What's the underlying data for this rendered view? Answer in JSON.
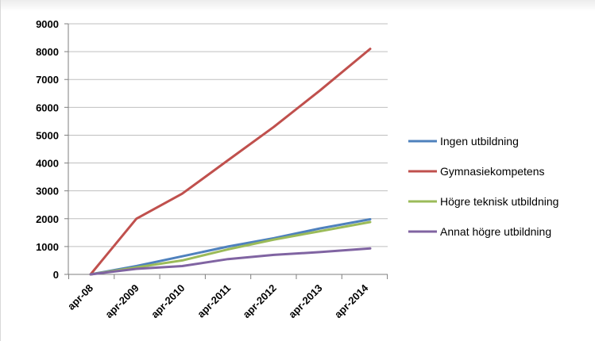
{
  "chart_data": {
    "type": "line",
    "title": "",
    "xlabel": "",
    "ylabel": "",
    "categories": [
      "apr-08",
      "apr-2009",
      "apr-2010",
      "apr-2011",
      "apr-2012",
      "apr-2013",
      "apr-2014"
    ],
    "ylim": [
      0,
      9000
    ],
    "yticks": [
      0,
      1000,
      2000,
      3000,
      4000,
      5000,
      6000,
      7000,
      8000,
      9000
    ],
    "grid": true,
    "legend_position": "right",
    "series": [
      {
        "name": "Ingen utbildning",
        "color": "#4f81bd",
        "points": [
          [
            0,
            0
          ],
          [
            1,
            300
          ],
          [
            2,
            650
          ],
          [
            3,
            1000
          ],
          [
            4,
            1300
          ],
          [
            5,
            1650
          ],
          [
            6.1,
            1980
          ]
        ]
      },
      {
        "name": "Gymnasiekompetens",
        "color": "#c0504d",
        "points": [
          [
            0,
            0
          ],
          [
            1,
            2000
          ],
          [
            2,
            2900
          ],
          [
            3,
            4100
          ],
          [
            4,
            5300
          ],
          [
            5,
            6600
          ],
          [
            6.1,
            8100
          ]
        ]
      },
      {
        "name": "Högre teknisk utbildning",
        "color": "#9bbb59",
        "points": [
          [
            0,
            0
          ],
          [
            1,
            250
          ],
          [
            2,
            500
          ],
          [
            3,
            900
          ],
          [
            4,
            1250
          ],
          [
            5,
            1550
          ],
          [
            6.1,
            1880
          ]
        ]
      },
      {
        "name": "Annat högre utbildning",
        "color": "#8064a2",
        "points": [
          [
            0,
            0
          ],
          [
            1,
            200
          ],
          [
            2,
            300
          ],
          [
            3,
            550
          ],
          [
            4,
            700
          ],
          [
            5,
            800
          ],
          [
            6.1,
            930
          ]
        ]
      }
    ]
  }
}
